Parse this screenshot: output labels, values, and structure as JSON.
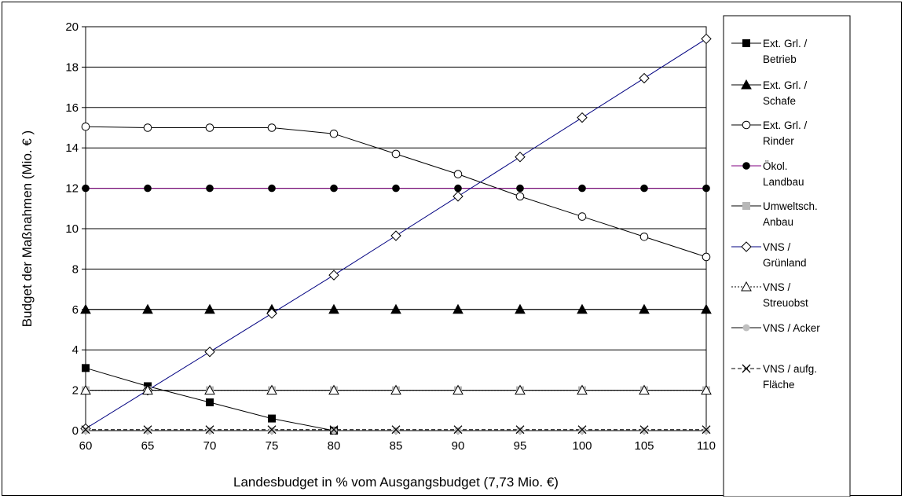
{
  "chart_data": {
    "type": "line",
    "xlabel": "Landesbudget in % vom Ausgangsbudget (7,73 Mio. €)",
    "ylabel": "Budget der Maßnahmen (Mio. € )",
    "xlim": [
      60,
      110
    ],
    "ylim": [
      0,
      20
    ],
    "x": [
      60,
      65,
      70,
      75,
      80,
      85,
      90,
      95,
      100,
      105,
      110
    ],
    "x_tick_labels": [
      "60",
      "65",
      "70",
      "75",
      "80",
      "85",
      "90",
      "95",
      "100",
      "105",
      "110"
    ],
    "y_tick_labels": [
      "0",
      "2",
      "4",
      "6",
      "8",
      "10",
      "12",
      "14",
      "16",
      "18",
      "20"
    ],
    "grid": "horizontal",
    "legend_position": "right",
    "series": [
      {
        "name_lines": [
          "Ext. Grl. /",
          "Betrieb"
        ],
        "marker": "square-filled",
        "color": "#000000",
        "dash": "solid",
        "values": [
          3.1,
          2.2,
          1.4,
          0.6,
          0.0,
          null,
          null,
          null,
          null,
          null,
          null
        ]
      },
      {
        "name_lines": [
          "Ext. Grl. /",
          "Schafe"
        ],
        "marker": "triangle-filled",
        "color": "#000000",
        "dash": "solid",
        "values": [
          6,
          6,
          6,
          6,
          6,
          6,
          6,
          6,
          6,
          6,
          6
        ]
      },
      {
        "name_lines": [
          "Ext. Grl. /",
          "Rinder"
        ],
        "marker": "circle-open",
        "color": "#000000",
        "dash": "solid",
        "values": [
          15.05,
          15.0,
          15.0,
          15.0,
          14.7,
          13.7,
          12.7,
          11.6,
          10.6,
          9.6,
          8.6
        ]
      },
      {
        "name_lines": [
          "Ökol.",
          "Landbau"
        ],
        "marker": "circle-filled",
        "color": "#800080",
        "dash": "solid",
        "values": [
          12,
          12,
          12,
          12,
          12,
          12,
          12,
          12,
          12,
          12,
          12
        ]
      },
      {
        "name_lines": [
          "Umweltsch.",
          "Anbau"
        ],
        "marker": "square-grey",
        "color": "#000000",
        "dash": "solid",
        "values": [
          2,
          2,
          2,
          2,
          2,
          2,
          2,
          2,
          2,
          2,
          2
        ]
      },
      {
        "name_lines": [
          "VNS /",
          "Grünland"
        ],
        "marker": "diamond-open",
        "color": "#000080",
        "dash": "solid",
        "values": [
          0.1,
          2.0,
          3.9,
          5.8,
          7.7,
          9.65,
          11.6,
          13.55,
          15.5,
          17.45,
          19.4
        ]
      },
      {
        "name_lines": [
          "VNS /",
          "Streuobst"
        ],
        "marker": "triangle-open",
        "color": "#000000",
        "dash": "dotted",
        "values": [
          2,
          2,
          2,
          2,
          2,
          2,
          2,
          2,
          2,
          2,
          2
        ]
      },
      {
        "name_lines": [
          "VNS / Acker"
        ],
        "marker": "circle-grey",
        "color": "#000000",
        "dash": "solid",
        "values": [
          0,
          0,
          0,
          0,
          0,
          0,
          0,
          0,
          0,
          0,
          0
        ]
      },
      {
        "name_lines": [
          "VNS / aufg.",
          "Fläche"
        ],
        "marker": "x",
        "color": "#000000",
        "dash": "dashed",
        "values": [
          0.05,
          0.05,
          0.05,
          0.05,
          0.05,
          0.05,
          0.05,
          0.05,
          0.05,
          0.05,
          0.05
        ]
      }
    ]
  }
}
